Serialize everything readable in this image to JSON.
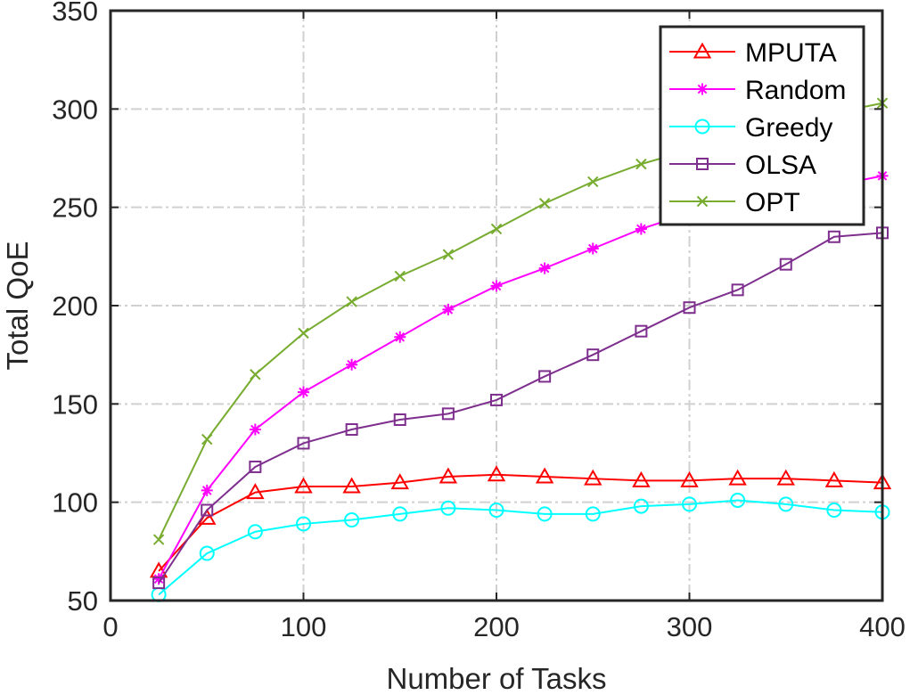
{
  "chart_data": {
    "type": "line",
    "title": "",
    "xlabel": "Number of Tasks",
    "ylabel": "Total QoE",
    "xlim": [
      0,
      400
    ],
    "ylim": [
      50,
      350
    ],
    "x_ticks": [
      0,
      100,
      200,
      300,
      400
    ],
    "y_ticks": [
      50,
      100,
      150,
      200,
      250,
      300,
      350
    ],
    "grid": true,
    "legend_position": "top-right",
    "x": [
      25,
      50,
      75,
      100,
      125,
      150,
      175,
      200,
      225,
      250,
      275,
      300,
      325,
      350,
      375,
      400
    ],
    "series": [
      {
        "name": "MPUTA",
        "color": "#ff0000",
        "marker": "triangle",
        "values": [
          65,
          92,
          105,
          108,
          108,
          110,
          113,
          114,
          113,
          112,
          111,
          111,
          112,
          112,
          111,
          110
        ]
      },
      {
        "name": "Random",
        "color": "#ff00ff",
        "marker": "asterisk",
        "values": [
          61,
          106,
          137,
          156,
          170,
          184,
          198,
          210,
          219,
          229,
          239,
          247,
          252,
          257,
          261,
          266
        ]
      },
      {
        "name": "Greedy",
        "color": "#00ffff",
        "marker": "circle",
        "values": [
          53,
          74,
          85,
          89,
          91,
          94,
          97,
          96,
          94,
          94,
          98,
          99,
          101,
          99,
          96,
          95
        ]
      },
      {
        "name": "OLSA",
        "color": "#7e2f8e",
        "marker": "square",
        "values": [
          59,
          96,
          118,
          130,
          137,
          142,
          145,
          152,
          164,
          175,
          187,
          199,
          208,
          221,
          235,
          237
        ]
      },
      {
        "name": "OPT",
        "color": "#77ac30",
        "marker": "x",
        "values": [
          81,
          132,
          165,
          186,
          202,
          215,
          226,
          239,
          252,
          263,
          272,
          279,
          286,
          292,
          298,
          303
        ]
      }
    ]
  }
}
